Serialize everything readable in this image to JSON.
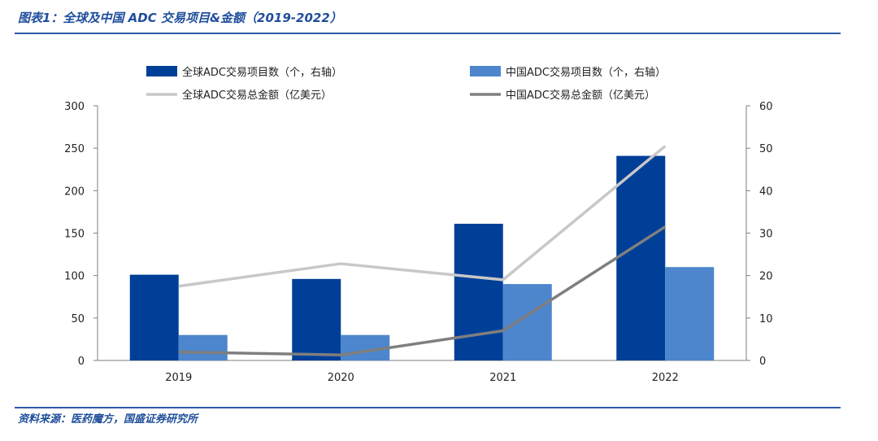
{
  "figure": {
    "title": "图表1：全球及中国 ADC 交易项目&金额（2019-2022）",
    "source": "资料来源：医药魔方，国盛证券研究所"
  },
  "colors": {
    "global_bar": "#003f98",
    "china_bar": "#4d86cc",
    "global_line": "#c8c8c8",
    "china_line": "#7f7f7f",
    "rule": "#2e5aa8"
  },
  "chart_data": {
    "type": "bar",
    "categories": [
      "2019",
      "2020",
      "2021",
      "2022"
    ],
    "series": [
      {
        "name": "全球ADC交易项目数（个，右轴）",
        "type": "bar",
        "axis": "left",
        "values": [
          101,
          96,
          161,
          241
        ]
      },
      {
        "name": "中国ADC交易项目数（个，右轴）",
        "type": "bar",
        "axis": "left",
        "values": [
          30,
          30,
          90,
          110
        ]
      },
      {
        "name": "全球ADC交易总金额（亿美元）",
        "type": "line",
        "axis": "right",
        "values": [
          17.5,
          22.8,
          19,
          50.5
        ]
      },
      {
        "name": "中国ADC交易总金额（亿美元）",
        "type": "line",
        "axis": "right",
        "values": [
          2,
          1.3,
          7,
          31.5
        ]
      }
    ],
    "left_axis": {
      "min": 0,
      "max": 300,
      "ticks": [
        "0",
        "50",
        "100",
        "150",
        "200",
        "250",
        "300"
      ]
    },
    "right_axis": {
      "min": 0,
      "max": 60,
      "ticks": [
        "0",
        "10",
        "20",
        "30",
        "40",
        "50",
        "60"
      ]
    },
    "legend": "top",
    "grid": false
  }
}
